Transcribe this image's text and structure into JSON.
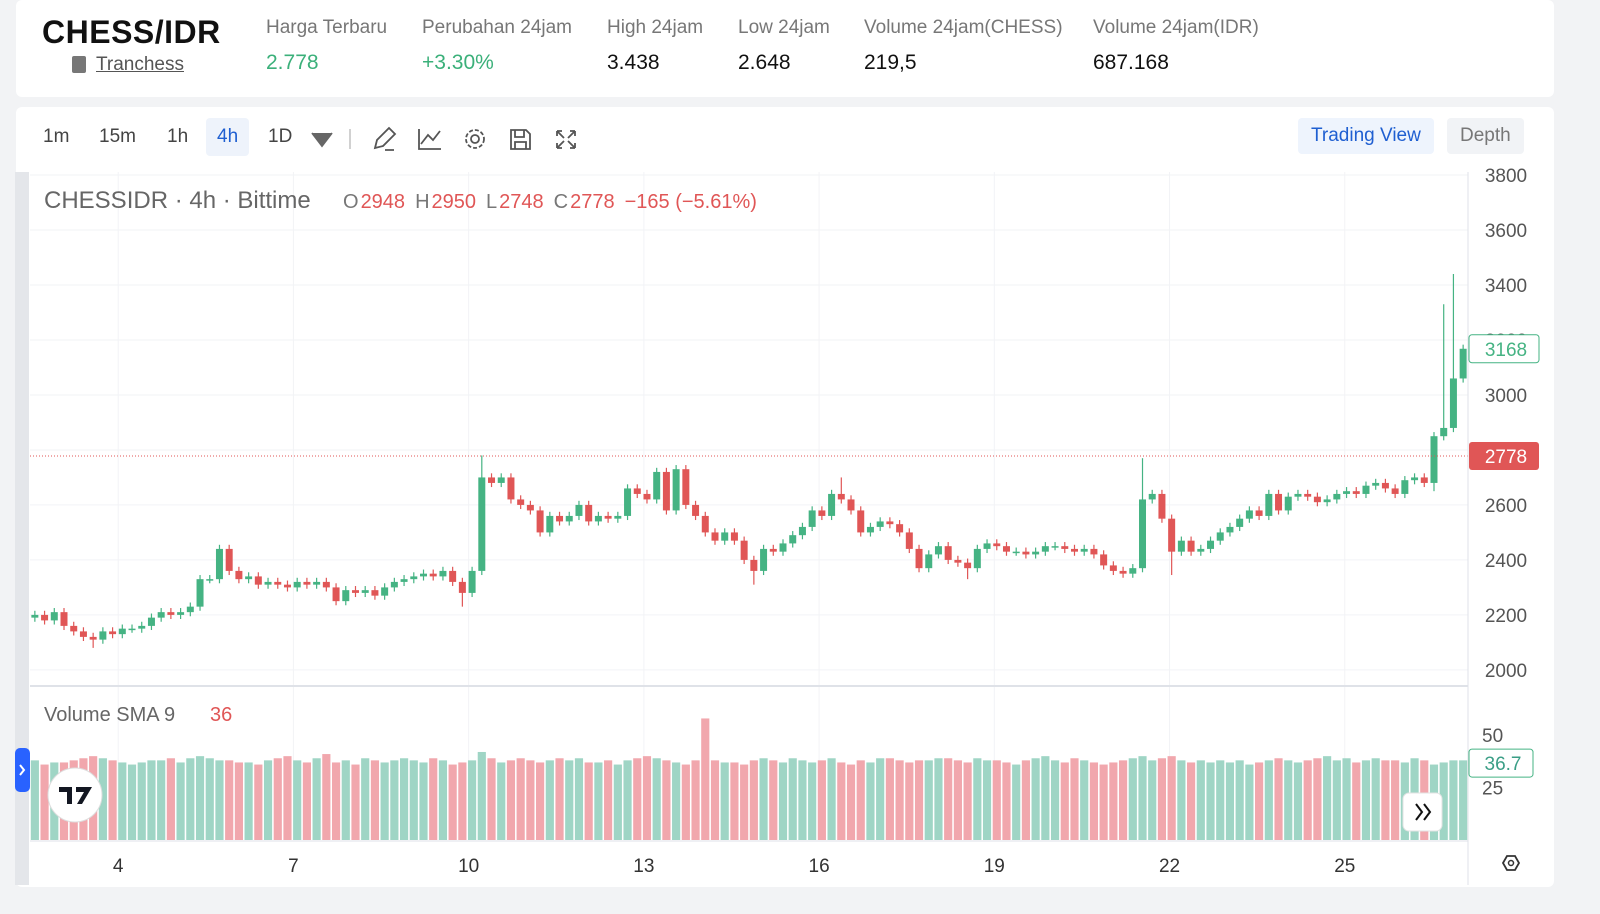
{
  "header": {
    "pair": "CHESS/IDR",
    "project": "Tranchess",
    "stats": [
      {
        "label": "Harga Terbaru",
        "value": "2.778",
        "color": "#3bb07a"
      },
      {
        "label": "Perubahan 24jam",
        "value": "+3.30%",
        "color": "#3bb07a"
      },
      {
        "label": "High 24jam",
        "value": "3.438",
        "color": "#111111"
      },
      {
        "label": "Low 24jam",
        "value": "2.648",
        "color": "#111111"
      },
      {
        "label": "Volume 24jam(CHESS)",
        "value": "219,5",
        "color": "#111111"
      },
      {
        "label": "Volume 24jam(IDR)",
        "value": "687.168",
        "color": "#111111"
      }
    ]
  },
  "toolbar": {
    "intervals": [
      "1m",
      "15m",
      "1h",
      "4h",
      "1D"
    ],
    "active": "4h",
    "views": [
      "Trading View",
      "Depth"
    ],
    "active_view": "Trading View"
  },
  "chart_data": {
    "type": "candlestick",
    "symbol": "CHESSIDR · 4h · Bittime",
    "legend_keys": [
      "O",
      "H",
      "L",
      "C"
    ],
    "legend_values": [
      2948,
      2950,
      2748,
      2778
    ],
    "change": "−165 (−5.61%)",
    "up_color": "#45b383",
    "down_color": "#e05656",
    "open": [
      2190,
      2200,
      2180,
      2210,
      2160,
      2140,
      2120,
      2110,
      2140,
      2130,
      2150,
      2150,
      2160,
      2190,
      2210,
      2200,
      2210,
      2230,
      2330,
      2330,
      2440,
      2360,
      2330,
      2340,
      2310,
      2320,
      2310,
      2300,
      2320,
      2310,
      2320,
      2300,
      2250,
      2290,
      2280,
      2290,
      2270,
      2300,
      2320,
      2330,
      2340,
      2350,
      2340,
      2360,
      2320,
      2280,
      2360,
      2700,
      2680,
      2700,
      2620,
      2600,
      2580,
      2500,
      2560,
      2540,
      2560,
      2600,
      2540,
      2560,
      2550,
      2560,
      2660,
      2640,
      2620,
      2720,
      2580,
      2730,
      2600,
      2560,
      2500,
      2470,
      2500,
      2470,
      2400,
      2360,
      2440,
      2430,
      2460,
      2490,
      2520,
      2580,
      2560,
      2640,
      2620,
      2580,
      2500,
      2520,
      2540,
      2530,
      2500,
      2440,
      2370,
      2420,
      2450,
      2400,
      2390,
      2370,
      2440,
      2460,
      2450,
      2430,
      2430,
      2420,
      2430,
      2450,
      2450,
      2440,
      2430,
      2440,
      2420,
      2380,
      2360,
      2350,
      2370,
      2620,
      2640,
      2550,
      2430,
      2470,
      2430,
      2440,
      2470,
      2500,
      2520,
      2550,
      2580,
      2560,
      2640,
      2580,
      2630,
      2640,
      2630,
      2610,
      2620,
      2640,
      2650,
      2640,
      2670,
      2680,
      2660,
      2640,
      2690,
      2700,
      2680,
      2850,
      2880,
      3060
    ],
    "high": [
      2215,
      2215,
      2225,
      2225,
      2175,
      2155,
      2135,
      2155,
      2155,
      2165,
      2165,
      2175,
      2205,
      2225,
      2225,
      2225,
      2245,
      2345,
      2345,
      2455,
      2455,
      2375,
      2355,
      2355,
      2335,
      2335,
      2325,
      2335,
      2335,
      2335,
      2335,
      2315,
      2305,
      2305,
      2305,
      2305,
      2315,
      2335,
      2345,
      2355,
      2365,
      2365,
      2375,
      2375,
      2335,
      2375,
      2780,
      2715,
      2715,
      2715,
      2635,
      2615,
      2595,
      2575,
      2575,
      2575,
      2615,
      2615,
      2575,
      2575,
      2575,
      2675,
      2675,
      2655,
      2735,
      2735,
      2745,
      2745,
      2615,
      2575,
      2515,
      2515,
      2515,
      2485,
      2415,
      2455,
      2455,
      2475,
      2505,
      2535,
      2595,
      2595,
      2655,
      2700,
      2635,
      2595,
      2535,
      2555,
      2555,
      2545,
      2515,
      2455,
      2435,
      2465,
      2465,
      2415,
      2405,
      2455,
      2475,
      2475,
      2465,
      2445,
      2445,
      2445,
      2465,
      2465,
      2465,
      2455,
      2455,
      2455,
      2435,
      2395,
      2375,
      2385,
      2770,
      2655,
      2655,
      2565,
      2485,
      2485,
      2455,
      2485,
      2515,
      2535,
      2565,
      2595,
      2595,
      2655,
      2655,
      2645,
      2655,
      2655,
      2645,
      2635,
      2655,
      2665,
      2665,
      2685,
      2695,
      2695,
      2675,
      2705,
      2715,
      2715,
      2865,
      3330,
      3440,
      3183
    ],
    "low": [
      2175,
      2165,
      2165,
      2145,
      2125,
      2105,
      2080,
      2095,
      2115,
      2115,
      2135,
      2135,
      2145,
      2175,
      2185,
      2185,
      2195,
      2215,
      2315,
      2315,
      2345,
      2315,
      2315,
      2295,
      2295,
      2295,
      2285,
      2285,
      2295,
      2295,
      2285,
      2235,
      2235,
      2265,
      2265,
      2255,
      2255,
      2285,
      2305,
      2315,
      2325,
      2325,
      2325,
      2305,
      2230,
      2265,
      2345,
      2665,
      2665,
      2605,
      2585,
      2565,
      2485,
      2485,
      2525,
      2525,
      2545,
      2525,
      2525,
      2535,
      2535,
      2545,
      2625,
      2605,
      2605,
      2565,
      2565,
      2585,
      2545,
      2485,
      2455,
      2455,
      2455,
      2385,
      2310,
      2345,
      2415,
      2415,
      2445,
      2475,
      2505,
      2545,
      2545,
      2605,
      2565,
      2485,
      2485,
      2505,
      2515,
      2485,
      2425,
      2355,
      2355,
      2405,
      2385,
      2375,
      2330,
      2355,
      2425,
      2435,
      2415,
      2415,
      2405,
      2405,
      2415,
      2435,
      2425,
      2415,
      2415,
      2405,
      2365,
      2345,
      2335,
      2335,
      2355,
      2605,
      2535,
      2345,
      2415,
      2415,
      2415,
      2425,
      2455,
      2485,
      2505,
      2535,
      2545,
      2545,
      2565,
      2565,
      2615,
      2615,
      2595,
      2595,
      2605,
      2625,
      2625,
      2625,
      2655,
      2645,
      2625,
      2625,
      2675,
      2665,
      2650,
      2835,
      2865,
      3045
    ],
    "close": [
      2200,
      2180,
      2210,
      2160,
      2140,
      2120,
      2110,
      2140,
      2130,
      2150,
      2150,
      2160,
      2190,
      2210,
      2200,
      2210,
      2230,
      2330,
      2330,
      2440,
      2360,
      2330,
      2340,
      2310,
      2320,
      2310,
      2300,
      2320,
      2310,
      2320,
      2300,
      2250,
      2290,
      2280,
      2290,
      2270,
      2300,
      2320,
      2330,
      2340,
      2350,
      2340,
      2360,
      2320,
      2280,
      2360,
      2700,
      2680,
      2700,
      2620,
      2600,
      2580,
      2500,
      2560,
      2540,
      2560,
      2600,
      2540,
      2560,
      2550,
      2560,
      2660,
      2640,
      2620,
      2720,
      2580,
      2730,
      2600,
      2560,
      2500,
      2470,
      2500,
      2470,
      2400,
      2360,
      2440,
      2430,
      2460,
      2490,
      2520,
      2580,
      2560,
      2640,
      2620,
      2580,
      2500,
      2520,
      2540,
      2530,
      2500,
      2440,
      2370,
      2420,
      2450,
      2400,
      2390,
      2370,
      2440,
      2460,
      2450,
      2430,
      2430,
      2420,
      2430,
      2450,
      2450,
      2440,
      2430,
      2440,
      2420,
      2380,
      2360,
      2350,
      2370,
      2620,
      2640,
      2550,
      2430,
      2470,
      2430,
      2440,
      2470,
      2500,
      2520,
      2550,
      2580,
      2560,
      2640,
      2580,
      2630,
      2640,
      2630,
      2610,
      2620,
      2640,
      2650,
      2640,
      2670,
      2680,
      2660,
      2640,
      2690,
      2700,
      2680,
      2850,
      2880,
      3060,
      3168
    ],
    "ylim": [
      1945,
      3811
    ],
    "yticks": [
      2000,
      2200,
      2400,
      2600,
      2800,
      3000,
      3200,
      3400,
      3600,
      3800
    ],
    "xlim": [
      2.49,
      27.11
    ],
    "xticks": [
      4,
      7,
      10,
      13,
      16,
      19,
      22,
      25
    ],
    "grid": true,
    "last_price": 3168,
    "price_line": 2778,
    "volume": {
      "name": "Volume SMA 9",
      "sma": 36,
      "last": 36.7,
      "up_color": "#9fd5c5",
      "down_color": "#f1a7ad",
      "ylim": [
        0,
        73
      ],
      "yticks": [
        25,
        50
      ],
      "values": [
        38,
        36,
        37,
        37,
        38,
        39,
        40,
        39,
        38,
        37,
        36,
        37,
        38,
        38,
        39,
        37,
        39,
        40,
        39,
        38,
        38,
        37,
        37,
        36,
        38,
        39,
        40,
        38,
        37,
        39,
        41,
        37,
        38,
        36,
        39,
        38,
        37,
        38,
        39,
        38,
        37,
        39,
        38,
        36,
        37,
        38,
        42,
        39,
        37,
        38,
        39,
        38,
        37,
        38,
        39,
        38,
        39,
        37,
        37,
        38,
        36,
        38,
        39,
        40,
        39,
        38,
        37,
        36,
        38,
        58,
        38,
        37,
        37,
        36,
        38,
        39,
        38,
        37,
        39,
        38,
        37,
        38,
        39,
        37,
        36,
        38,
        37,
        39,
        39,
        38,
        37,
        38,
        38,
        39,
        39,
        38,
        37,
        39,
        38,
        38,
        37,
        36,
        38,
        39,
        40,
        38,
        37,
        39,
        38,
        37,
        36,
        37,
        38,
        39,
        40,
        38,
        39,
        40,
        38,
        37,
        38,
        37,
        38,
        37,
        38,
        36,
        37,
        38,
        39,
        38,
        37,
        38,
        39,
        40,
        38,
        39,
        37,
        38,
        39,
        38,
        38,
        37,
        39,
        38,
        36,
        37,
        38,
        38
      ]
    }
  }
}
